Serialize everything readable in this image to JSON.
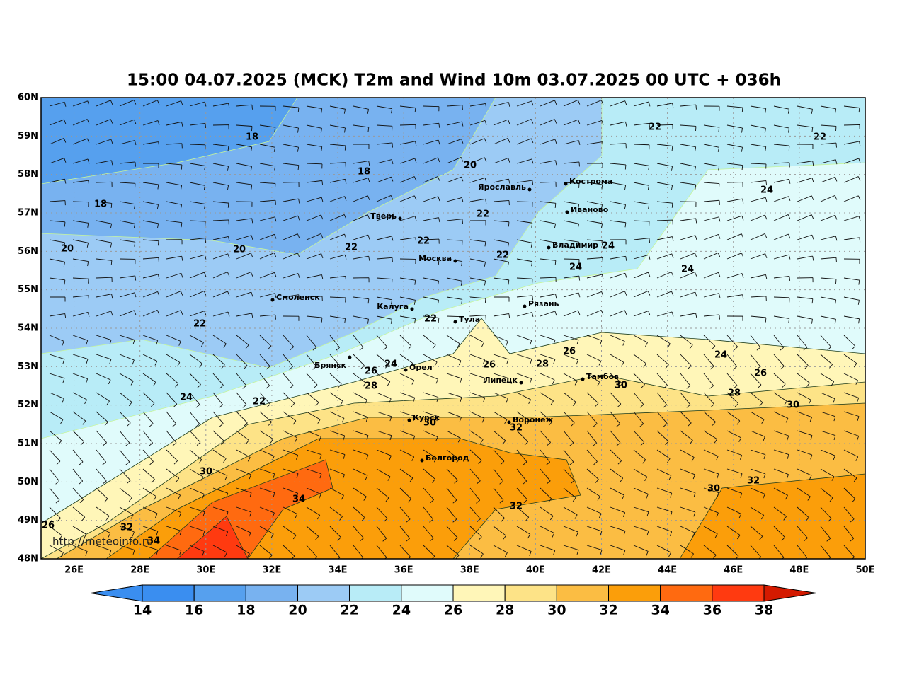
{
  "title": "15:00 04.07.2025 (MCK) T2m and Wind 10m 03.07.2025 00 UTC + 036h",
  "lat_labels": [
    "48N",
    "49N",
    "50N",
    "51N",
    "52N",
    "53N",
    "54N",
    "55N",
    "56N",
    "57N",
    "58N",
    "59N",
    "60N"
  ],
  "lon_labels": [
    "26E",
    "28E",
    "30E",
    "32E",
    "34E",
    "36E",
    "38E",
    "40E",
    "42E",
    "44E",
    "46E",
    "48E",
    "50E"
  ],
  "cities": [
    "Кострома",
    "Ярославль",
    "Иваново",
    "Тверь",
    "Владимир",
    "Москва",
    "Смоленск",
    "Рязань",
    "Калуга",
    "Тула",
    "Брянск",
    "Орел",
    "Липецк",
    "Тамбов",
    "Курск",
    "Воронеж",
    "Белгород"
  ],
  "contour_labels": [
    18,
    18,
    18,
    20,
    22,
    22,
    24,
    22,
    22,
    20,
    20,
    22,
    22,
    24,
    24,
    24,
    22,
    22,
    26,
    24,
    24,
    26,
    26,
    28,
    26,
    28,
    30,
    28,
    24,
    22,
    30,
    30,
    32,
    30,
    34,
    32,
    30,
    32,
    26,
    32,
    34
  ],
  "watermark": "http://meteoinfo.ru",
  "colorbar": {
    "ticks": [
      14,
      16,
      18,
      20,
      22,
      24,
      26,
      28,
      30,
      32,
      34,
      36,
      38
    ],
    "colors": [
      "#3a8ef0",
      "#56a0ee",
      "#78b2f0",
      "#9ccbf5",
      "#b8ecf7",
      "#e0fbfb",
      "#fff6b8",
      "#fde387",
      "#fbbd43",
      "#fb9e0a",
      "#ff6a10",
      "#ff3a10"
    ],
    "under_color": "#3a8ef0",
    "over_color": "#d41a00"
  }
}
